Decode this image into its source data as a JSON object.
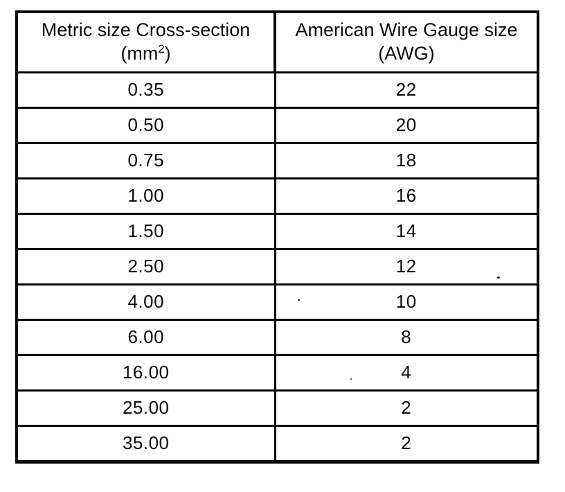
{
  "document": {
    "kind": "scanned-table",
    "background_color": "#fefefe",
    "ink_color": "#050505"
  },
  "table": {
    "columns": [
      {
        "title": "Metric size Cross-section",
        "unit_open": "(mm",
        "unit_sup": "2",
        "unit_close": ")"
      },
      {
        "title": "American Wire Gauge size",
        "unit_open": "(AWG",
        "unit_sup": "",
        "unit_close": ")"
      }
    ],
    "rows": [
      {
        "metric": "0.35",
        "awg": "22"
      },
      {
        "metric": "0.50",
        "awg": "20"
      },
      {
        "metric": "0.75",
        "awg": "18"
      },
      {
        "metric": "1.00",
        "awg": "16"
      },
      {
        "metric": "1.50",
        "awg": "14"
      },
      {
        "metric": "2.50",
        "awg": "12"
      },
      {
        "metric": "4.00",
        "awg": "10"
      },
      {
        "metric": "6.00",
        "awg": "8"
      },
      {
        "metric": "16.00",
        "awg": "4"
      },
      {
        "metric": "25.00",
        "awg": "2"
      },
      {
        "metric": "35.00",
        "awg": "2"
      }
    ]
  }
}
